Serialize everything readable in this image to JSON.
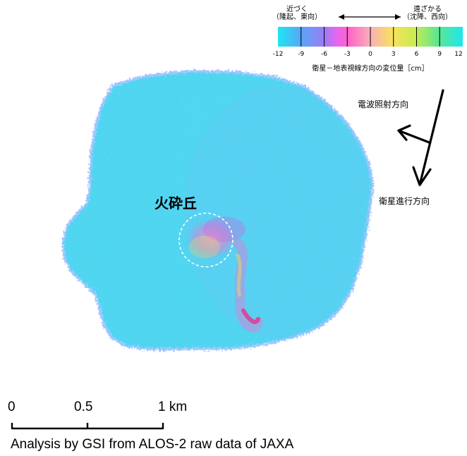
{
  "legend": {
    "toward_label": "近づく",
    "toward_sub": "（隆起、東向）",
    "away_label": "遠ざかる",
    "away_sub": "（沈降、西向）",
    "ticks": [
      "-12",
      "-9",
      "-6",
      "-3",
      "0",
      "3",
      "6",
      "9",
      "12"
    ],
    "title": "衛星－地表視線方向の変位量［cm］",
    "range": [
      -12,
      12
    ],
    "colors": [
      "#1ee6f0",
      "#50a8f8",
      "#9a7cf5",
      "#ff60e8",
      "#f6b8c8",
      "#f8e25c",
      "#c8ec52",
      "#60e68c",
      "#1ee6f0"
    ]
  },
  "annotations": {
    "radar_direction": "電波照射方向",
    "satellite_direction": "衛星進行方向",
    "feature_name": "火砕丘"
  },
  "scale": {
    "tick_0": "0",
    "tick_mid": "0.5",
    "tick_end": "1 km"
  },
  "credit": "Analysis by GSI from ALOS-2 raw data of JAXA",
  "colors": {
    "island_fill": "#45d6ee",
    "island_edge": "#7fb8ff",
    "noise_magenta": "#e050d8",
    "noise_yellow": "#f0d660"
  }
}
